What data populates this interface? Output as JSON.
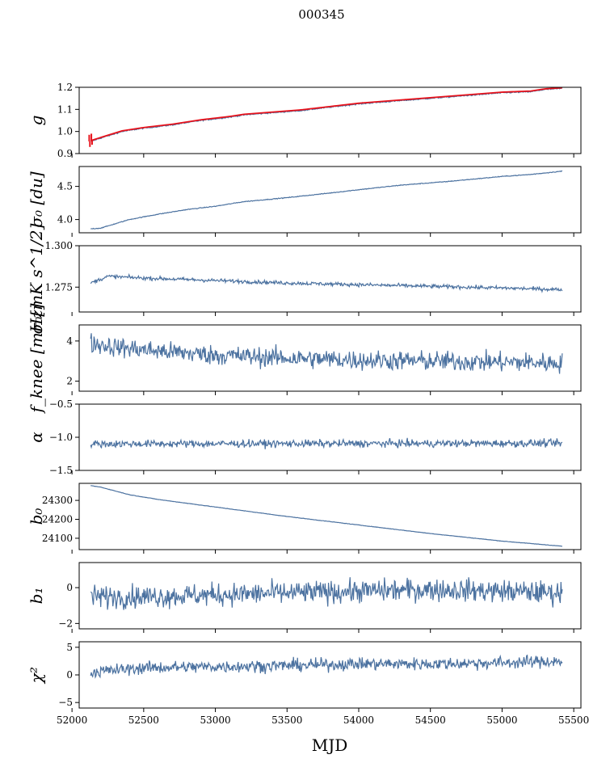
{
  "figure": {
    "title": "000345",
    "xlabel": "MJD"
  },
  "chart_data": {
    "type": "line",
    "x_range": [
      52050,
      55550
    ],
    "x_ticks": [
      52000,
      52500,
      53000,
      53500,
      54000,
      54500,
      55000,
      55500
    ],
    "panels": [
      {
        "name": "g",
        "ylabel": "g",
        "ylim": [
          0.9,
          1.2
        ],
        "y_ticks": [
          0.9,
          1.0,
          1.1,
          1.2
        ],
        "tick_decimals": 1,
        "x_tick_labels": false,
        "series_color": "#4c72a0",
        "overlay_color": "#e8121b",
        "trend": [
          [
            52130,
            0.955
          ],
          [
            52200,
            0.97
          ],
          [
            52350,
            1.0
          ],
          [
            52500,
            1.015
          ],
          [
            52700,
            1.03
          ],
          [
            52900,
            1.05
          ],
          [
            53100,
            1.065
          ],
          [
            53200,
            1.075
          ],
          [
            53400,
            1.085
          ],
          [
            53600,
            1.095
          ],
          [
            53800,
            1.11
          ],
          [
            54000,
            1.125
          ],
          [
            54200,
            1.135
          ],
          [
            54400,
            1.145
          ],
          [
            54600,
            1.155
          ],
          [
            54800,
            1.165
          ],
          [
            55000,
            1.175
          ],
          [
            55200,
            1.18
          ],
          [
            55300,
            1.19
          ],
          [
            55420,
            1.195
          ]
        ],
        "noise": 0.002,
        "spikes": [
          [
            52120,
            0.985
          ],
          [
            52125,
            0.93
          ],
          [
            52135,
            0.99
          ],
          [
            52140,
            0.94
          ]
        ]
      },
      {
        "name": "sigma0_du",
        "ylabel": "σ₀ [du]",
        "ylim": [
          3.8,
          4.8
        ],
        "y_ticks": [
          4.0,
          4.5
        ],
        "tick_decimals": 1,
        "x_tick_labels": false,
        "series_color": "#4c72a0",
        "trend": [
          [
            52130,
            3.86
          ],
          [
            52200,
            3.87
          ],
          [
            52400,
            4.0
          ],
          [
            52600,
            4.08
          ],
          [
            52800,
            4.15
          ],
          [
            53000,
            4.2
          ],
          [
            53200,
            4.27
          ],
          [
            53500,
            4.33
          ],
          [
            53800,
            4.4
          ],
          [
            54000,
            4.45
          ],
          [
            54300,
            4.52
          ],
          [
            54600,
            4.57
          ],
          [
            55000,
            4.65
          ],
          [
            55200,
            4.68
          ],
          [
            55420,
            4.73
          ]
        ],
        "noise": 0.004
      },
      {
        "name": "sigma0_mK",
        "ylabel": "σ₀[mK s^1/2]",
        "ylim": [
          1.26,
          1.3
        ],
        "y_ticks": [
          1.275,
          1.3
        ],
        "tick_decimals": 3,
        "x_tick_labels": false,
        "series_color": "#4c72a0",
        "trend": [
          [
            52130,
            1.2775
          ],
          [
            52250,
            1.2815
          ],
          [
            52500,
            1.2805
          ],
          [
            53000,
            1.279
          ],
          [
            53500,
            1.2775
          ],
          [
            54000,
            1.2765
          ],
          [
            54500,
            1.2755
          ],
          [
            55000,
            1.2745
          ],
          [
            55420,
            1.2735
          ]
        ],
        "noise": 0.0008
      },
      {
        "name": "fknee",
        "ylabel": "f_knee [mHz]",
        "ylim": [
          1.5,
          4.8
        ],
        "y_ticks": [
          2,
          4
        ],
        "tick_decimals": 0,
        "x_tick_labels": false,
        "series_color": "#4c72a0",
        "trend": [
          [
            52130,
            3.9
          ],
          [
            52300,
            3.7
          ],
          [
            52600,
            3.5
          ],
          [
            53000,
            3.3
          ],
          [
            53500,
            3.15
          ],
          [
            54000,
            3.05
          ],
          [
            54500,
            3.0
          ],
          [
            55000,
            2.95
          ],
          [
            55420,
            2.9
          ]
        ],
        "noise": 0.35
      },
      {
        "name": "alpha",
        "ylabel": "α",
        "ylim": [
          -1.5,
          -0.5
        ],
        "y_ticks": [
          -1.5,
          -1.0,
          -0.5
        ],
        "tick_decimals": 1,
        "x_tick_labels": false,
        "series_color": "#4c72a0",
        "trend": [
          [
            52130,
            -1.1
          ],
          [
            55420,
            -1.09
          ]
        ],
        "noise": 0.04
      },
      {
        "name": "b0",
        "ylabel": "b₀",
        "ylim": [
          24040,
          24390
        ],
        "y_ticks": [
          24100,
          24200,
          24300
        ],
        "tick_decimals": 0,
        "x_tick_labels": false,
        "series_color": "#4c72a0",
        "trend": [
          [
            52130,
            24378
          ],
          [
            52200,
            24370
          ],
          [
            52400,
            24330
          ],
          [
            52600,
            24305
          ],
          [
            53000,
            24265
          ],
          [
            53500,
            24215
          ],
          [
            54000,
            24170
          ],
          [
            54500,
            24125
          ],
          [
            55000,
            24085
          ],
          [
            55420,
            24058
          ]
        ],
        "noise": 0.8
      },
      {
        "name": "b1",
        "ylabel": "b₁",
        "ylim": [
          -2.3,
          1.4
        ],
        "y_ticks": [
          -2,
          0
        ],
        "tick_decimals": 0,
        "x_tick_labels": false,
        "series_color": "#4c72a0",
        "trend": [
          [
            52130,
            -0.5
          ],
          [
            52500,
            -0.5
          ],
          [
            53000,
            -0.4
          ],
          [
            53500,
            -0.3
          ],
          [
            54000,
            -0.2
          ],
          [
            54500,
            -0.1
          ],
          [
            55000,
            -0.2
          ],
          [
            55420,
            -0.3
          ]
        ],
        "noise": 0.45
      },
      {
        "name": "chi2",
        "ylabel": "χ²",
        "ylim": [
          -6,
          6
        ],
        "y_ticks": [
          -5,
          0,
          5
        ],
        "tick_decimals": 0,
        "x_tick_labels": true,
        "series_color": "#4c72a0",
        "trend": [
          [
            52130,
            0.5
          ],
          [
            52500,
            1.3
          ],
          [
            53000,
            1.5
          ],
          [
            53500,
            1.7
          ],
          [
            54000,
            2.0
          ],
          [
            54500,
            2.0
          ],
          [
            55000,
            2.2
          ],
          [
            55420,
            2.5
          ]
        ],
        "noise": 0.8
      }
    ]
  }
}
